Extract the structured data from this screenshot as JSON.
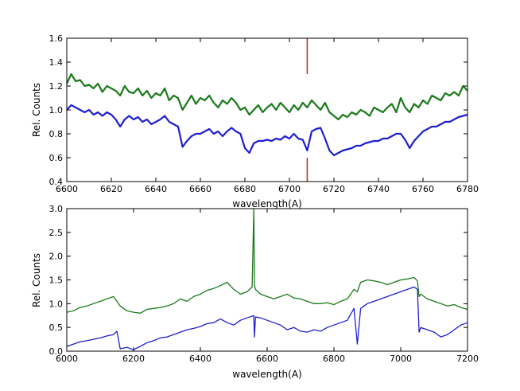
{
  "colors": {
    "series_green": "#1a7a1a",
    "series_blue": "#1f1fd0",
    "marker_red": "#c0262c",
    "axes": "#000000"
  },
  "chart_data": [
    {
      "type": "line",
      "xlabel": "wavelength(A)",
      "ylabel": "Rel. Counts",
      "xlim": [
        6600,
        6780
      ],
      "ylim": [
        0.4,
        1.6
      ],
      "xticks": [
        "6600",
        "6620",
        "6640",
        "6660",
        "6680",
        "6700",
        "6720",
        "6740",
        "6760",
        "6780"
      ],
      "yticks": [
        "0.4",
        "0.6",
        "0.8",
        "1.0",
        "1.2",
        "1.4",
        "1.6"
      ],
      "grid": false,
      "vertical_marker": {
        "x": 6708,
        "segments": [
          [
            1.3,
            1.6
          ],
          [
            0.4,
            0.6
          ]
        ]
      },
      "series": [
        {
          "color": "green",
          "x": [
            6600,
            6602,
            6604,
            6606,
            6608,
            6610,
            6612,
            6614,
            6616,
            6618,
            6620,
            6622,
            6624,
            6626,
            6628,
            6630,
            6632,
            6634,
            6636,
            6638,
            6640,
            6642,
            6644,
            6646,
            6648,
            6650,
            6652,
            6654,
            6656,
            6658,
            6660,
            6662,
            6664,
            6666,
            6668,
            6670,
            6672,
            6674,
            6676,
            6678,
            6680,
            6682,
            6684,
            6686,
            6688,
            6690,
            6692,
            6694,
            6696,
            6698,
            6700,
            6702,
            6704,
            6706,
            6708,
            6710,
            6712,
            6714,
            6716,
            6718,
            6720,
            6722,
            6724,
            6726,
            6728,
            6730,
            6732,
            6734,
            6736,
            6738,
            6740,
            6742,
            6744,
            6746,
            6748,
            6750,
            6752,
            6754,
            6756,
            6758,
            6760,
            6762,
            6764,
            6766,
            6768,
            6770,
            6772,
            6774,
            6776,
            6778,
            6780
          ],
          "y": [
            1.22,
            1.3,
            1.24,
            1.25,
            1.2,
            1.21,
            1.18,
            1.22,
            1.15,
            1.2,
            1.18,
            1.16,
            1.12,
            1.2,
            1.15,
            1.14,
            1.18,
            1.12,
            1.16,
            1.1,
            1.14,
            1.12,
            1.18,
            1.08,
            1.12,
            1.1,
            1.0,
            1.06,
            1.12,
            1.05,
            1.1,
            1.08,
            1.12,
            1.06,
            1.02,
            1.08,
            1.05,
            1.1,
            1.06,
            1.0,
            1.02,
            0.96,
            1.0,
            1.04,
            0.98,
            1.02,
            1.05,
            1.0,
            1.06,
            1.02,
            0.98,
            1.04,
            1.0,
            1.06,
            1.02,
            1.08,
            1.04,
            1.0,
            1.06,
            0.98,
            0.95,
            0.92,
            0.96,
            0.94,
            0.98,
            0.96,
            1.0,
            0.98,
            0.95,
            1.02,
            1.0,
            0.98,
            1.02,
            1.05,
            0.98,
            1.1,
            1.02,
            0.98,
            1.05,
            1.02,
            1.08,
            1.05,
            1.12,
            1.1,
            1.08,
            1.14,
            1.12,
            1.15,
            1.12,
            1.2,
            1.16
          ]
        },
        {
          "color": "blue",
          "x": [
            6600,
            6602,
            6604,
            6606,
            6608,
            6610,
            6612,
            6614,
            6616,
            6618,
            6620,
            6622,
            6624,
            6626,
            6628,
            6630,
            6632,
            6634,
            6636,
            6638,
            6640,
            6642,
            6644,
            6646,
            6648,
            6650,
            6652,
            6654,
            6656,
            6658,
            6660,
            6662,
            6664,
            6666,
            6668,
            6670,
            6672,
            6674,
            6676,
            6678,
            6680,
            6682,
            6684,
            6686,
            6688,
            6690,
            6692,
            6694,
            6696,
            6698,
            6700,
            6702,
            6704,
            6706,
            6708,
            6710,
            6712,
            6714,
            6716,
            6718,
            6720,
            6722,
            6724,
            6726,
            6728,
            6730,
            6732,
            6734,
            6736,
            6738,
            6740,
            6742,
            6744,
            6746,
            6748,
            6750,
            6752,
            6754,
            6756,
            6758,
            6760,
            6762,
            6764,
            6766,
            6768,
            6770,
            6772,
            6774,
            6776,
            6778,
            6780
          ],
          "y": [
            1.0,
            1.04,
            1.02,
            1.0,
            0.98,
            1.0,
            0.96,
            0.98,
            0.95,
            0.98,
            0.96,
            0.92,
            0.86,
            0.92,
            0.95,
            0.92,
            0.94,
            0.9,
            0.92,
            0.88,
            0.9,
            0.92,
            0.95,
            0.9,
            0.88,
            0.86,
            0.69,
            0.74,
            0.78,
            0.8,
            0.8,
            0.82,
            0.84,
            0.8,
            0.82,
            0.78,
            0.82,
            0.85,
            0.82,
            0.8,
            0.68,
            0.64,
            0.72,
            0.74,
            0.74,
            0.75,
            0.74,
            0.76,
            0.75,
            0.78,
            0.76,
            0.8,
            0.76,
            0.75,
            0.66,
            0.82,
            0.84,
            0.85,
            0.76,
            0.66,
            0.62,
            0.64,
            0.66,
            0.67,
            0.68,
            0.7,
            0.7,
            0.72,
            0.73,
            0.74,
            0.74,
            0.76,
            0.76,
            0.78,
            0.8,
            0.8,
            0.75,
            0.68,
            0.74,
            0.78,
            0.82,
            0.84,
            0.86,
            0.86,
            0.88,
            0.9,
            0.9,
            0.92,
            0.94,
            0.95,
            0.96
          ]
        }
      ]
    },
    {
      "type": "line",
      "xlabel": "wavelength(A)",
      "ylabel": "Rel. Counts",
      "xlim": [
        6000,
        7200
      ],
      "ylim": [
        0.0,
        3.0
      ],
      "xticks": [
        "6000",
        "6200",
        "6400",
        "6600",
        "6800",
        "7000",
        "7200"
      ],
      "yticks": [
        "0.0",
        "0.5",
        "1.0",
        "1.5",
        "2.0",
        "2.5",
        "3.0"
      ],
      "grid": false,
      "series": [
        {
          "color": "green",
          "x": [
            6000,
            6020,
            6040,
            6060,
            6080,
            6100,
            6120,
            6140,
            6160,
            6180,
            6200,
            6220,
            6240,
            6260,
            6280,
            6300,
            6320,
            6340,
            6360,
            6380,
            6400,
            6420,
            6440,
            6460,
            6480,
            6500,
            6520,
            6540,
            6555,
            6560,
            6562,
            6565,
            6580,
            6600,
            6620,
            6640,
            6660,
            6680,
            6700,
            6720,
            6740,
            6760,
            6780,
            6800,
            6820,
            6840,
            6860,
            6870,
            6880,
            6900,
            6920,
            6940,
            6960,
            6980,
            7000,
            7020,
            7040,
            7050,
            7055,
            7060,
            7080,
            7100,
            7120,
            7140,
            7160,
            7180,
            7200
          ],
          "y": [
            0.82,
            0.85,
            0.92,
            0.95,
            1.0,
            1.05,
            1.1,
            1.15,
            0.95,
            0.85,
            0.82,
            0.8,
            0.88,
            0.9,
            0.92,
            0.95,
            1.0,
            1.1,
            1.05,
            1.15,
            1.2,
            1.28,
            1.32,
            1.38,
            1.45,
            1.3,
            1.2,
            1.25,
            1.35,
            3.0,
            1.4,
            1.3,
            1.2,
            1.15,
            1.1,
            1.15,
            1.2,
            1.12,
            1.1,
            1.05,
            1.0,
            1.0,
            1.02,
            0.98,
            1.05,
            1.1,
            1.3,
            1.25,
            1.45,
            1.5,
            1.48,
            1.45,
            1.4,
            1.45,
            1.5,
            1.52,
            1.55,
            1.48,
            1.15,
            1.2,
            1.1,
            1.05,
            1.0,
            0.95,
            0.98,
            0.92,
            0.88
          ]
        },
        {
          "color": "blue",
          "x": [
            6000,
            6020,
            6040,
            6060,
            6080,
            6100,
            6120,
            6140,
            6150,
            6160,
            6180,
            6200,
            6220,
            6240,
            6260,
            6280,
            6300,
            6320,
            6340,
            6360,
            6380,
            6400,
            6420,
            6440,
            6460,
            6480,
            6500,
            6520,
            6540,
            6560,
            6562,
            6565,
            6580,
            6600,
            6620,
            6640,
            6660,
            6680,
            6700,
            6720,
            6740,
            6760,
            6780,
            6800,
            6820,
            6840,
            6860,
            6870,
            6880,
            6900,
            6920,
            6940,
            6960,
            6980,
            7000,
            7020,
            7040,
            7050,
            7055,
            7060,
            7080,
            7100,
            7120,
            7140,
            7160,
            7180,
            7200
          ],
          "y": [
            0.1,
            0.15,
            0.2,
            0.22,
            0.25,
            0.28,
            0.32,
            0.35,
            0.42,
            0.05,
            0.08,
            0.03,
            0.1,
            0.18,
            0.22,
            0.28,
            0.3,
            0.35,
            0.4,
            0.45,
            0.48,
            0.52,
            0.58,
            0.6,
            0.68,
            0.6,
            0.55,
            0.65,
            0.7,
            0.75,
            0.3,
            0.72,
            0.7,
            0.65,
            0.6,
            0.55,
            0.45,
            0.5,
            0.42,
            0.4,
            0.45,
            0.42,
            0.5,
            0.55,
            0.6,
            0.65,
            0.9,
            0.15,
            0.9,
            1.0,
            1.05,
            1.1,
            1.15,
            1.2,
            1.25,
            1.3,
            1.35,
            1.3,
            0.4,
            0.5,
            0.45,
            0.4,
            0.3,
            0.35,
            0.45,
            0.55,
            0.6
          ]
        }
      ]
    }
  ]
}
